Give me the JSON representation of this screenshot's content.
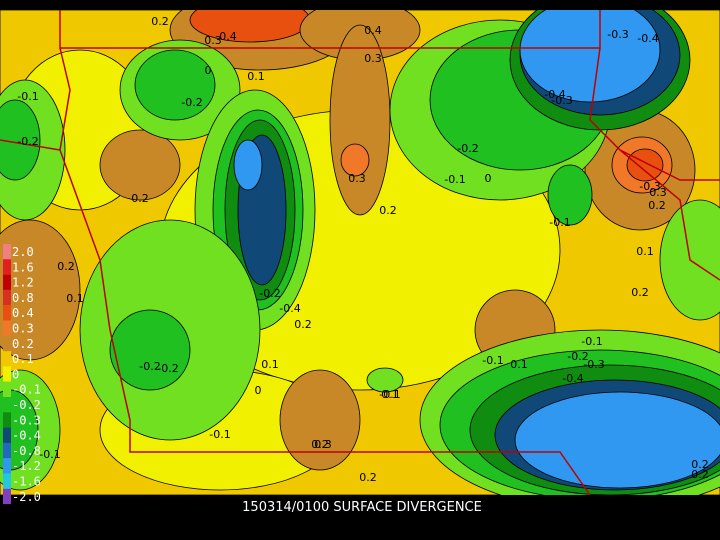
{
  "title": "150314/0100 SURFACE DIVERGENCE",
  "legend": [
    {
      "label": "2.0",
      "color": "#f08080"
    },
    {
      "label": "1.6",
      "color": "#e02020"
    },
    {
      "label": "1.2",
      "color": "#c00000"
    },
    {
      "label": "0.8",
      "color": "#d83020"
    },
    {
      "label": "0.4",
      "color": "#e85010"
    },
    {
      "label": "0.3",
      "color": "#f07828"
    },
    {
      "label": "0.2",
      "color": "#c88828"
    },
    {
      "label": "0.1",
      "color": "#f0c800"
    },
    {
      "label": "0",
      "color": "#f0f000"
    },
    {
      "label": "-0.1",
      "color": "#70e020"
    },
    {
      "label": "-0.2",
      "color": "#20c020"
    },
    {
      "label": "-0.3",
      "color": "#108c10"
    },
    {
      "label": "-0.4",
      "color": "#104878"
    },
    {
      "label": "-0.8",
      "color": "#2068c0"
    },
    {
      "label": "-1.2",
      "color": "#3098f0"
    },
    {
      "label": "-1.6",
      "color": "#20c8e0"
    },
    {
      "label": "-2.0",
      "color": "#8040c0"
    }
  ],
  "contour_labels": [
    "0.2",
    "0.3",
    "0.4",
    "0.4",
    "0.3",
    "-0.3",
    "-0.4",
    "-0.1",
    "-0.2",
    "0",
    "0.1",
    "-0.2",
    "-0.4",
    "-0.3",
    "-0.2",
    "0.2",
    "-0.1",
    "0.3",
    "0.2",
    "0",
    "-0.2",
    "-0.1",
    "0.2",
    "0.3",
    "0.2",
    "-0.3",
    "-0.2",
    "-0.4",
    "0.2",
    "-0.1",
    "0.1",
    "-0.1",
    "0.2",
    "0.1",
    "-0.2",
    "0.1",
    "0",
    "-0.1",
    "0.3",
    "0.2",
    "-0.1",
    "0.2",
    "0.1",
    "-0.1",
    "-0.2",
    "-0.4",
    "-0.3",
    "0.2",
    "0.1",
    "0.2"
  ]
}
